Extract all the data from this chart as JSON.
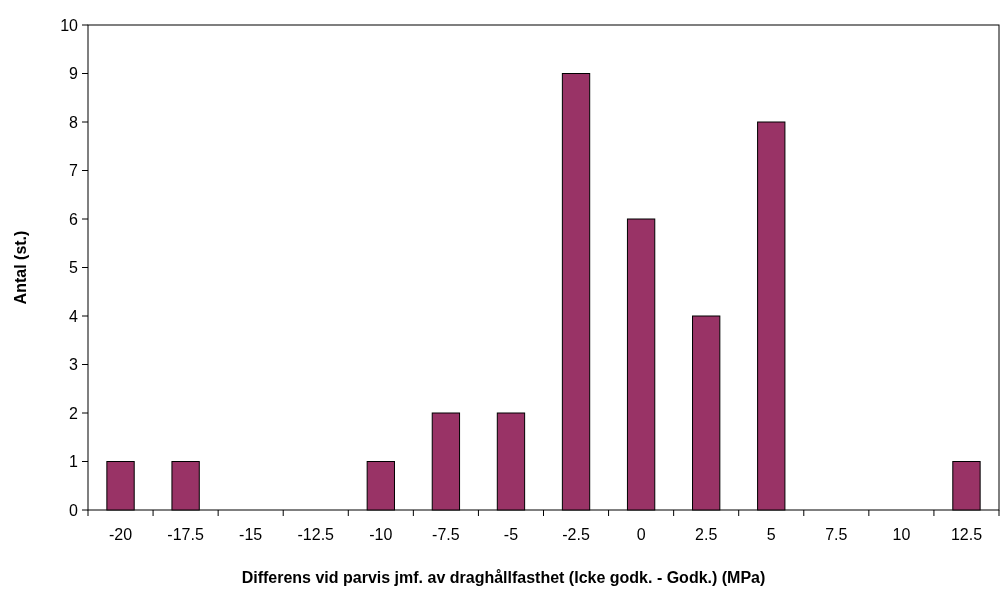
{
  "chart_data": {
    "type": "bar",
    "xlabel": "Differens vid parvis jmf. av draghållfasthet (Icke godk. - Godk.) (MPa)",
    "ylabel": "Antal (st.)",
    "categories": [
      "-20",
      "-17.5",
      "-15",
      "-12.5",
      "-10",
      "-7.5",
      "-5",
      "-2.5",
      "0",
      "2.5",
      "5",
      "7.5",
      "10",
      "12.5"
    ],
    "values": [
      1,
      1,
      0,
      0,
      1,
      2,
      2,
      9,
      6,
      4,
      8,
      0,
      0,
      1
    ],
    "color": "#993366",
    "ylim": [
      0,
      10
    ],
    "yticks": [
      0,
      1,
      2,
      3,
      4,
      5,
      6,
      7,
      8,
      9,
      10
    ],
    "grid": false
  }
}
